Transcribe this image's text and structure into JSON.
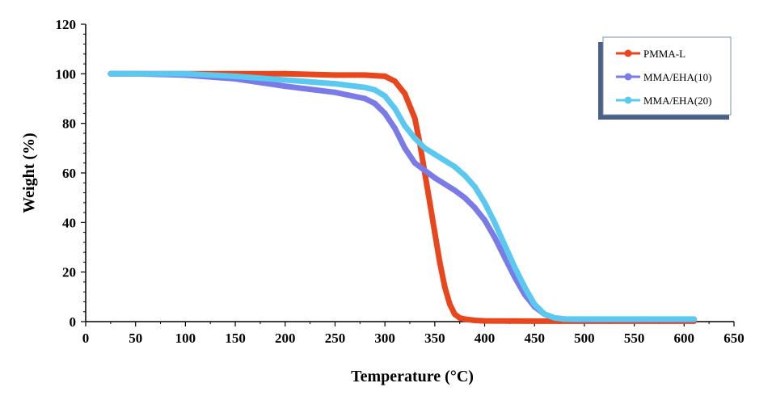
{
  "chart_data": {
    "type": "line",
    "title": "",
    "xlabel": "Temperature (°C)",
    "ylabel": "Weight  (%)",
    "xlim": [
      0,
      650
    ],
    "ylim": [
      0,
      120
    ],
    "xticks": [
      "0",
      "50",
      "100",
      "150",
      "200",
      "250",
      "300",
      "350",
      "400",
      "450",
      "500",
      "550",
      "600",
      "650"
    ],
    "yticks": [
      "0",
      "20",
      "40",
      "60",
      "80",
      "100",
      "120"
    ],
    "grid": false,
    "legend_position": "top-right",
    "series": [
      {
        "name": "PMMA-L",
        "color": "#e8461c",
        "x": [
          25,
          50,
          100,
          150,
          200,
          250,
          280,
          300,
          310,
          320,
          330,
          335,
          340,
          345,
          350,
          355,
          360,
          365,
          370,
          375,
          380,
          390,
          400,
          450,
          500,
          550,
          600,
          610
        ],
        "y": [
          100,
          100,
          100,
          100,
          100,
          99.5,
          99.5,
          99,
          97,
          92,
          82,
          72,
          60,
          48,
          36,
          24,
          14,
          7,
          3,
          1.5,
          1,
          0.5,
          0.3,
          0.2,
          0.2,
          0.2,
          0.2,
          0.2
        ]
      },
      {
        "name": "MMA/EHA(10)",
        "color": "#7b7be8",
        "x": [
          25,
          50,
          100,
          150,
          200,
          250,
          280,
          290,
          300,
          310,
          320,
          330,
          340,
          350,
          360,
          370,
          380,
          390,
          400,
          410,
          420,
          430,
          440,
          450,
          460,
          470,
          480,
          490,
          500,
          550,
          600,
          610
        ],
        "y": [
          100,
          100,
          99.5,
          98,
          95,
          92.5,
          90,
          88,
          84,
          78,
          70,
          64,
          61,
          58,
          55.5,
          53,
          50,
          46,
          41,
          34,
          26,
          18,
          11,
          6,
          3,
          1.5,
          1,
          0.8,
          0.8,
          0.8,
          0.8,
          0.8
        ]
      },
      {
        "name": "MMA/EHA(20)",
        "color": "#5bc8f0",
        "x": [
          25,
          50,
          100,
          150,
          200,
          250,
          280,
          290,
          300,
          310,
          320,
          330,
          340,
          350,
          360,
          370,
          380,
          390,
          400,
          410,
          420,
          430,
          440,
          450,
          460,
          470,
          480,
          490,
          500,
          550,
          600,
          610
        ],
        "y": [
          100,
          100,
          100,
          99,
          97.5,
          96,
          94.5,
          93.5,
          91,
          86,
          79,
          74,
          70,
          67.5,
          65,
          62.5,
          59,
          54.5,
          48,
          40,
          31,
          22,
          14,
          7,
          3,
          1.5,
          1,
          1,
          1,
          1,
          1,
          1
        ]
      }
    ]
  }
}
